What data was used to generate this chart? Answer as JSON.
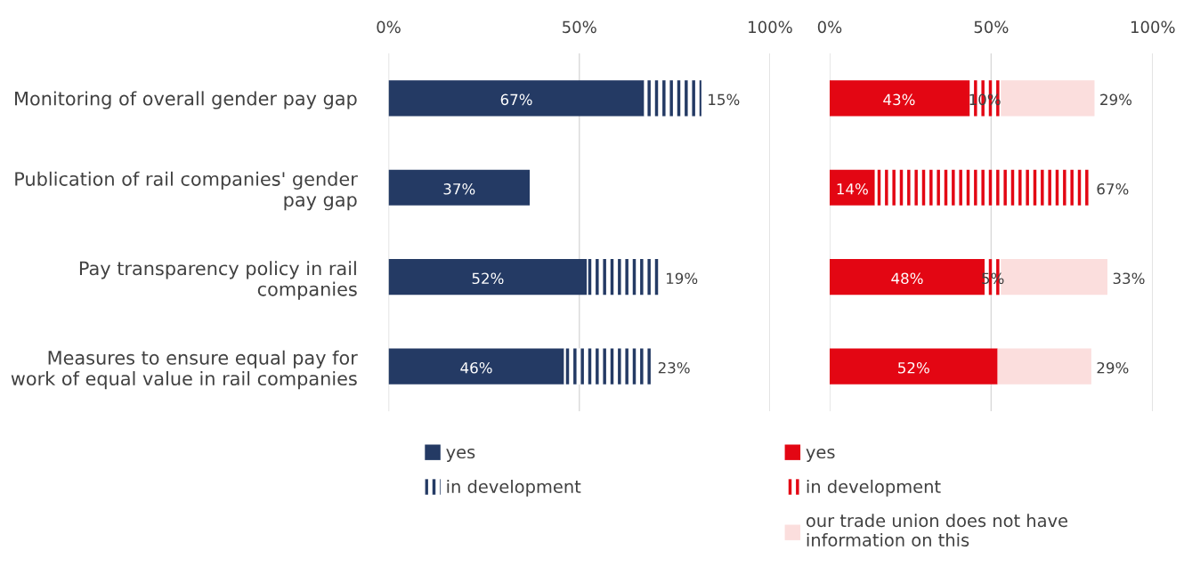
{
  "chart_data": [
    {
      "type": "bar",
      "orientation": "horizontal",
      "stacked": true,
      "grid": "x",
      "legend": "bottom",
      "categories": [
        "Monitoring of overall gender pay gap",
        "Publication of rail companies' gender\npay gap",
        "Pay transparency policy in rail\ncompanies",
        "Measures to ensure equal pay for\nwork of equal value in rail companies"
      ],
      "xlim": [
        0,
        100
      ],
      "xticks": [
        {
          "value": 0,
          "label": "0%"
        },
        {
          "value": 50,
          "label": "50%"
        },
        {
          "value": 100,
          "label": "100%"
        }
      ],
      "series": [
        {
          "name": "yes",
          "color": "#243a64",
          "values": [
            67,
            37,
            52,
            46
          ],
          "value_labels": [
            "67%",
            "37%",
            "52%",
            "46%"
          ]
        },
        {
          "name": "in development",
          "color": "#243a64",
          "values": [
            15,
            null,
            19,
            23
          ],
          "value_labels": [
            "15%",
            null,
            "19%",
            "23%"
          ]
        }
      ]
    },
    {
      "type": "bar",
      "orientation": "horizontal",
      "stacked": true,
      "grid": "x",
      "legend": "bottom",
      "tick_labels": "x",
      "categories": [
        null,
        null,
        null,
        null
      ],
      "xlim": [
        0,
        100
      ],
      "xticks": [
        {
          "value": 0,
          "label": "0%"
        },
        {
          "value": 50,
          "label": "50%"
        },
        {
          "value": 100,
          "label": "100%"
        }
      ],
      "series": [
        {
          "name": "yes",
          "color": "#e30613",
          "values": [
            43,
            14,
            48,
            52
          ],
          "value_labels": [
            "43%",
            "14%",
            "48%",
            "52%"
          ]
        },
        {
          "name": "in development",
          "color": "#e30613",
          "values": [
            10,
            67,
            5,
            null
          ],
          "value_labels": [
            "10%",
            "67%",
            "5%",
            null
          ]
        },
        {
          "name": "our trade union does not have\ninformation on this",
          "color": "#fbdedd",
          "values": [
            29,
            null,
            33,
            29
          ],
          "value_labels": [
            "29%",
            null,
            "33%",
            "29%"
          ]
        }
      ]
    }
  ]
}
